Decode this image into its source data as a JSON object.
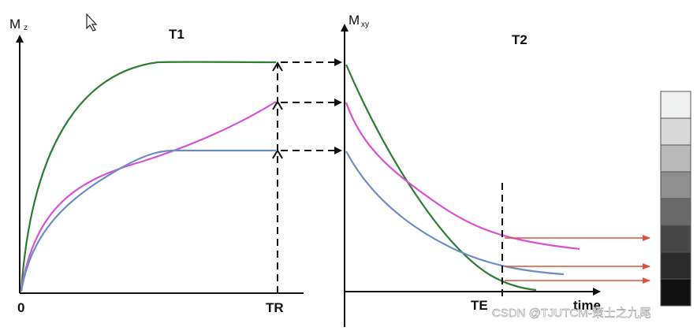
{
  "left_panel": {
    "axis_label_main": "M",
    "axis_label_sub": "z",
    "title": "T1",
    "origin_label": "0",
    "tick_label": "TR"
  },
  "right_panel": {
    "axis_label_main": "M",
    "axis_label_sub": "xy",
    "title": "T2",
    "tick_label": "TE",
    "x_axis_label": "time"
  },
  "grayscale_bar": {
    "levels": [
      "#eef0f0",
      "#d8d8d8",
      "#b9b9b9",
      "#8e8e8e",
      "#6a6a6a",
      "#474747",
      "#2b2b2b",
      "#121212"
    ]
  },
  "watermark": "CSDN @TJUTCM-策士之九尾",
  "colors": {
    "green_curve": "#2e7d32",
    "magenta_curve": "#d94fd6",
    "blue_curve": "#6a8fc7",
    "red_arrow": "#d8543c",
    "axis": "#111111"
  }
}
